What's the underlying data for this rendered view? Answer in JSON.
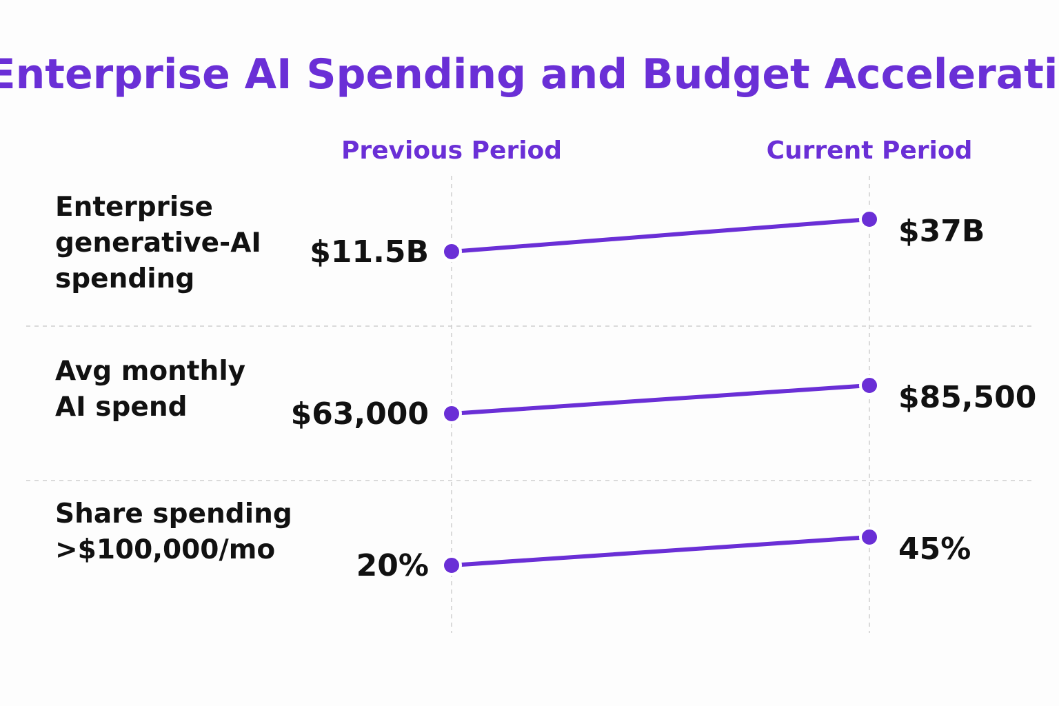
{
  "accent_color": "#6a2fd6",
  "chart_data": {
    "type": "line",
    "title": "Enterprise AI Spending and Budget Acceleration",
    "periods": [
      "Previous Period",
      "Current Period"
    ],
    "grid": true,
    "metrics": [
      {
        "label_lines": [
          "Enterprise",
          "generative-AI",
          "spending"
        ],
        "values": [
          11.5,
          37
        ],
        "unit": "billion USD",
        "value_labels": [
          "$11.5B",
          "$37B"
        ]
      },
      {
        "label_lines": [
          "Avg monthly",
          "AI spend"
        ],
        "values": [
          63000,
          85500
        ],
        "unit": "USD per month",
        "value_labels": [
          "$63,000",
          "$85,500"
        ]
      },
      {
        "label_lines": [
          "Share spending",
          ">$100,000/mo"
        ],
        "values": [
          20,
          45
        ],
        "unit": "percent",
        "value_labels": [
          "20%",
          "45%"
        ]
      }
    ]
  }
}
